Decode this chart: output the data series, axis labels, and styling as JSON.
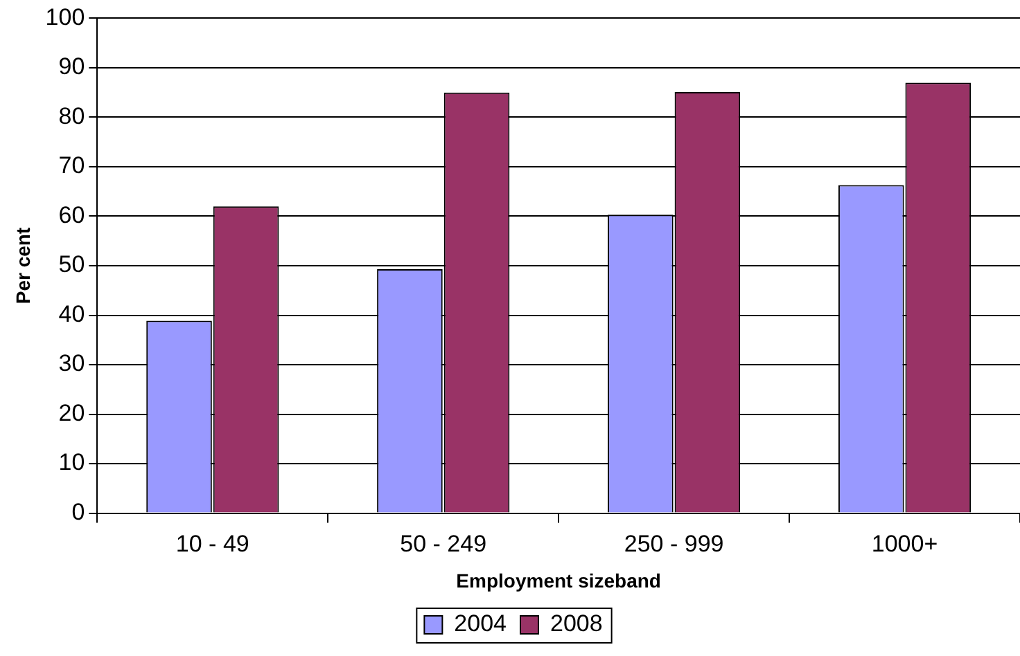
{
  "chart_data": {
    "type": "bar",
    "xlabel": "Employment sizeband",
    "ylabel": "Per cent",
    "categories": [
      "10 - 49",
      "50 - 249",
      "250 - 999",
      "1000+"
    ],
    "series": [
      {
        "name": "2004",
        "color": "#9999ff",
        "values": [
          38.9,
          49.3,
          60.3,
          66.3
        ]
      },
      {
        "name": "2008",
        "color": "#993366",
        "values": [
          62,
          85,
          85.1,
          87
        ]
      }
    ],
    "ylim": [
      0,
      100
    ],
    "yticks": [
      0,
      10,
      20,
      30,
      40,
      50,
      60,
      70,
      80,
      90,
      100
    ],
    "grid": "y",
    "legend": "bottom"
  }
}
